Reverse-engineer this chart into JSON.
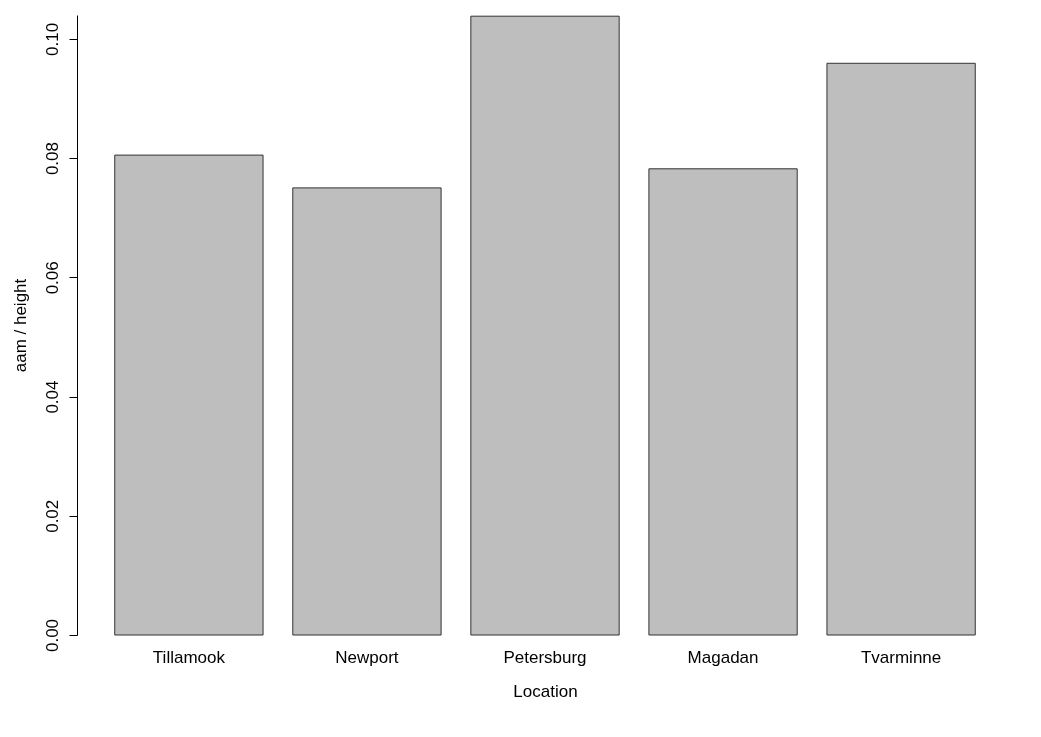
{
  "chart_data": {
    "type": "bar",
    "xlabel": "Location",
    "ylabel": "aam / height",
    "categories": [
      "Tillamook",
      "Newport",
      "Petersburg",
      "Magadan",
      "Tvarminne"
    ],
    "values": [
      0.0805,
      0.075,
      0.1038,
      0.0782,
      0.0959
    ],
    "color": "#bebebe",
    "ylim": [
      0,
      0.104
    ],
    "yticks": [
      {
        "value": 0,
        "label": "0.00"
      },
      {
        "value": 0.02,
        "label": "0.02"
      },
      {
        "value": 0.04,
        "label": "0.04"
      },
      {
        "value": 0.06,
        "label": "0.06"
      },
      {
        "value": 0.08,
        "label": "0.08"
      },
      {
        "value": 0.1,
        "label": "0.10"
      }
    ],
    "grid": false
  }
}
